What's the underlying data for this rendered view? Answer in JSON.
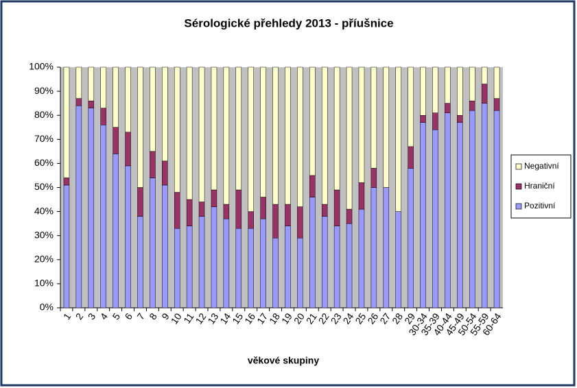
{
  "chart_data": {
    "type": "stacked-bar-100",
    "title": "Sérologické přehledy 2013 - příušnice",
    "xlabel": "věkové skupiny",
    "categories": [
      "1",
      "2",
      "3",
      "4",
      "5",
      "6",
      "7",
      "8",
      "9",
      "10",
      "11",
      "12",
      "13",
      "14",
      "15",
      "16",
      "17",
      "18",
      "19",
      "20",
      "21",
      "22",
      "23",
      "24",
      "25",
      "26",
      "27",
      "28",
      "29",
      "30-34",
      "35-39",
      "40-44",
      "45-49",
      "50-54",
      "55-59",
      "60-64"
    ],
    "series": [
      {
        "name": "Pozitivní",
        "color": "#9999ff",
        "values": [
          51,
          84,
          83,
          76,
          64,
          59,
          38,
          54,
          51,
          33,
          34,
          38,
          42,
          37,
          33,
          33,
          37,
          29,
          34,
          29,
          46,
          38,
          34,
          35,
          41,
          50,
          50,
          40,
          58,
          77,
          74,
          81,
          77,
          82,
          85,
          82
        ]
      },
      {
        "name": "Hraniční",
        "color": "#993366",
        "values": [
          3,
          3,
          3,
          7,
          11,
          14,
          12,
          11,
          10,
          15,
          11,
          6,
          7,
          6,
          16,
          7,
          9,
          14,
          9,
          13,
          9,
          5,
          15,
          6,
          11,
          8,
          0,
          0,
          9,
          3,
          7,
          4,
          3,
          4,
          8,
          5
        ]
      },
      {
        "name": "Negativní",
        "color": "#ffffcc",
        "values": [
          46,
          13,
          14,
          17,
          25,
          27,
          50,
          35,
          39,
          52,
          55,
          56,
          51,
          57,
          51,
          60,
          54,
          57,
          57,
          58,
          45,
          57,
          51,
          59,
          48,
          42,
          50,
          60,
          33,
          20,
          19,
          15,
          20,
          14,
          7,
          13
        ]
      }
    ],
    "ylim": [
      0,
      100
    ],
    "yticks": [
      {
        "value": 0,
        "label": "0%"
      },
      {
        "value": 10,
        "label": "10%"
      },
      {
        "value": 20,
        "label": "20%"
      },
      {
        "value": 30,
        "label": "30%"
      },
      {
        "value": 40,
        "label": "40%"
      },
      {
        "value": 50,
        "label": "50%"
      },
      {
        "value": 60,
        "label": "60%"
      },
      {
        "value": 70,
        "label": "70%"
      },
      {
        "value": 80,
        "label": "80%"
      },
      {
        "value": 90,
        "label": "90%"
      },
      {
        "value": 100,
        "label": "100%"
      }
    ],
    "legend": "right"
  }
}
